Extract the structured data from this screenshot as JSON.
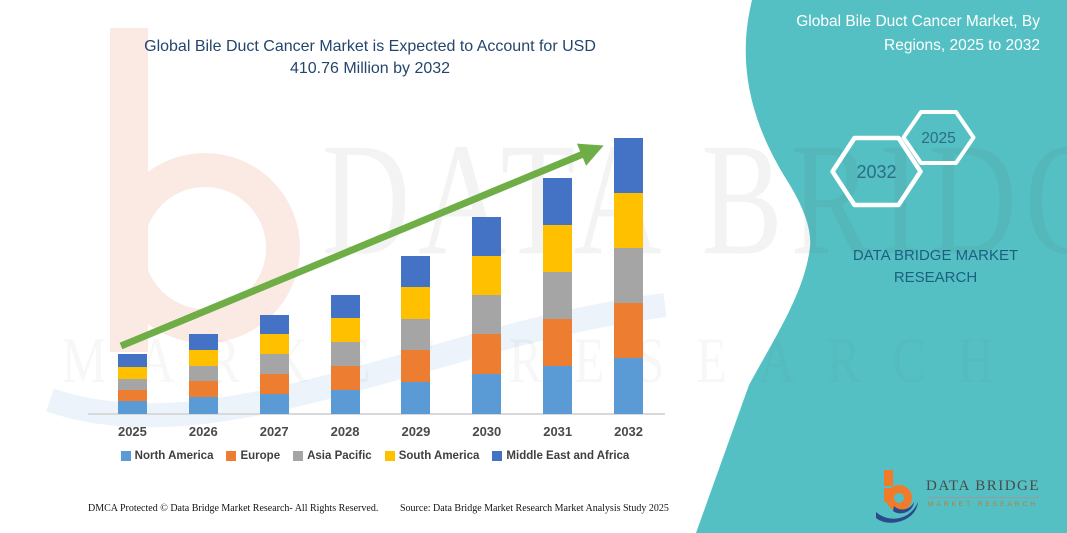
{
  "header": {
    "title_line1": "Global Bile Duct Cancer Market is Expected to Account for USD",
    "title_line2": "410.76 Million by 2032"
  },
  "side_panel": {
    "title_line1": "Global Bile Duct Cancer Market, By",
    "title_line2": "Regions, 2025 to 2032",
    "hexagon_back_label": "2032",
    "hexagon_front_label": "2025",
    "brand_line1": "DATA BRIDGE MARKET",
    "brand_line2": "RESEARCH",
    "panel_color": "#54C0C3"
  },
  "watermark": {
    "text_line1": "DATA BRIDGE",
    "text_line2": "MARKET RESEARCH"
  },
  "footer": {
    "dmca": "DMCA Protected © Data Bridge Market Research-  All Rights Reserved.",
    "source": "Source: Data Bridge Market Research  Market Analysis Study 2025"
  },
  "logo": {
    "name": "DATA BRIDGE",
    "tagline": "MARKET RESEARCH",
    "b_color": "#F07B2A",
    "swoosh_color": "#2B4A8B"
  },
  "chart_data": {
    "type": "bar",
    "stacked": true,
    "title": "Global Bile Duct Cancer Market is Expected to Account for USD 410.76 Million by 2032",
    "unit": "USD Million",
    "categories": [
      "2025",
      "2026",
      "2027",
      "2028",
      "2029",
      "2030",
      "2031",
      "2032"
    ],
    "series": [
      {
        "name": "North America",
        "color": "#5B9BD5",
        "values": [
          18,
          24,
          29,
          35,
          47,
          59,
          70,
          82
        ]
      },
      {
        "name": "Europe",
        "color": "#ED7D31",
        "values": [
          17,
          24,
          30,
          36,
          47,
          59,
          70,
          82
        ]
      },
      {
        "name": "Asia Pacific",
        "color": "#A5A5A5",
        "values": [
          17,
          23,
          29,
          35,
          47,
          58,
          70,
          82
        ]
      },
      {
        "name": "South America",
        "color": "#FFC000",
        "values": [
          17,
          24,
          30,
          36,
          47,
          59,
          71,
          82
        ]
      },
      {
        "name": "Middle East and Africa",
        "color": "#4472C4",
        "values": [
          19,
          24,
          29,
          35,
          47,
          58,
          70,
          82.76
        ]
      }
    ],
    "totals": [
      88,
      119,
      147,
      177,
      235,
      293,
      351,
      410.76
    ],
    "final_year_total_label": "USD 410.76 Million by 2032",
    "ylim": [
      0,
      420
    ],
    "y_axis_visible": false,
    "gridlines": false,
    "legend_position": "bottom",
    "trend_arrow": true,
    "trend_arrow_color": "#6FAE47"
  }
}
